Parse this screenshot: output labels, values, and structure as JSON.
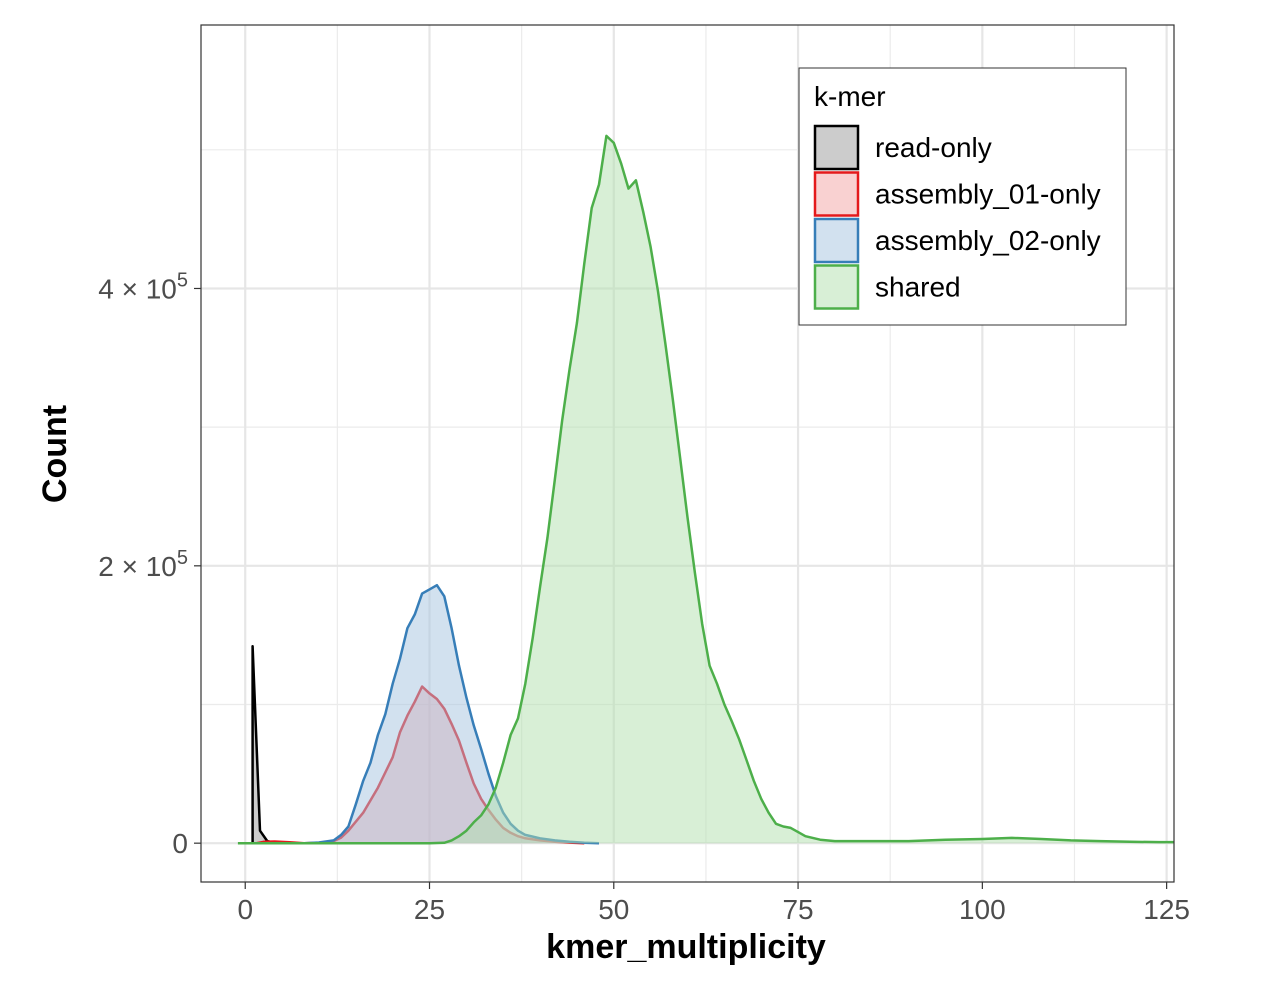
{
  "chart_data": {
    "type": "area",
    "title": "",
    "xlabel": "kmer_multiplicity",
    "ylabel": "Count",
    "xlim": [
      -6,
      126
    ],
    "ylim": [
      -28000,
      590000
    ],
    "x_ticks": [
      {
        "value": 0,
        "label": "0"
      },
      {
        "value": 25,
        "label": "25"
      },
      {
        "value": 50,
        "label": "50"
      },
      {
        "value": 75,
        "label": "75"
      },
      {
        "value": 100,
        "label": "100"
      },
      {
        "value": 125,
        "label": "125"
      }
    ],
    "y_ticks": [
      {
        "value": 0,
        "label": "0",
        "mantissa": "",
        "exponent": ""
      },
      {
        "value": 200000,
        "label": "2 × 10^5",
        "mantissa": "2",
        "exponent": "5"
      },
      {
        "value": 400000,
        "label": "4 × 10^5",
        "mantissa": "4",
        "exponent": "5"
      }
    ],
    "grid": true,
    "legend": {
      "title": "k-mer",
      "position": "top-right"
    },
    "series": [
      {
        "name": "read-only",
        "fill": "#999999",
        "stroke": "#000000",
        "points": [
          [
            1,
            0
          ],
          [
            1,
            142000
          ],
          [
            2,
            9000
          ],
          [
            3,
            1500
          ],
          [
            4,
            300
          ],
          [
            5,
            0
          ]
        ]
      },
      {
        "name": "assembly_01-only",
        "fill": "#F4A3A4",
        "stroke": "#E41A1C",
        "points": [
          [
            1.5,
            0
          ],
          [
            2.5,
            1000
          ],
          [
            4,
            1200
          ],
          [
            6,
            600
          ],
          [
            8,
            0
          ],
          [
            10,
            300
          ],
          [
            12,
            1500
          ],
          [
            13,
            4000
          ],
          [
            14,
            9000
          ],
          [
            16,
            22000
          ],
          [
            18,
            40000
          ],
          [
            20,
            62000
          ],
          [
            21,
            80000
          ],
          [
            22,
            92000
          ],
          [
            23,
            102000
          ],
          [
            24,
            113000
          ],
          [
            25,
            108000
          ],
          [
            26,
            104000
          ],
          [
            27,
            97000
          ],
          [
            28,
            86000
          ],
          [
            29,
            74000
          ],
          [
            30,
            58000
          ],
          [
            31,
            43000
          ],
          [
            32,
            32000
          ],
          [
            33,
            24000
          ],
          [
            34,
            17000
          ],
          [
            35,
            11000
          ],
          [
            36,
            7500
          ],
          [
            37,
            5000
          ],
          [
            38,
            3500
          ],
          [
            40,
            2000
          ],
          [
            42,
            1000
          ],
          [
            44,
            400
          ],
          [
            46,
            0
          ]
        ]
      },
      {
        "name": "assembly_02-only",
        "fill": "#A6C4E0",
        "stroke": "#377EB8",
        "points": [
          [
            8,
            0
          ],
          [
            10,
            500
          ],
          [
            12,
            2000
          ],
          [
            13,
            6000
          ],
          [
            14,
            12000
          ],
          [
            15,
            28000
          ],
          [
            16,
            45000
          ],
          [
            17,
            58000
          ],
          [
            18,
            78000
          ],
          [
            19,
            93000
          ],
          [
            20,
            115000
          ],
          [
            21,
            133000
          ],
          [
            22,
            155000
          ],
          [
            23,
            165000
          ],
          [
            24,
            180000
          ],
          [
            25,
            183000
          ],
          [
            26,
            186000
          ],
          [
            27,
            178000
          ],
          [
            28,
            155000
          ],
          [
            29,
            128000
          ],
          [
            30,
            105000
          ],
          [
            31,
            85000
          ],
          [
            32,
            68000
          ],
          [
            33,
            50000
          ],
          [
            34,
            34000
          ],
          [
            35,
            22000
          ],
          [
            36,
            14000
          ],
          [
            37,
            9000
          ],
          [
            38,
            6000
          ],
          [
            40,
            3500
          ],
          [
            42,
            2000
          ],
          [
            44,
            1000
          ],
          [
            46,
            300
          ],
          [
            48,
            0
          ]
        ]
      },
      {
        "name": "shared",
        "fill": "#B2DFAD",
        "stroke": "#4DAF4A",
        "points": [
          [
            -1,
            0
          ],
          [
            5,
            0
          ],
          [
            10,
            0
          ],
          [
            15,
            0
          ],
          [
            20,
            0
          ],
          [
            25,
            0
          ],
          [
            27,
            300
          ],
          [
            28,
            2000
          ],
          [
            29,
            5000
          ],
          [
            30,
            9000
          ],
          [
            31,
            15000
          ],
          [
            32,
            20000
          ],
          [
            33,
            28000
          ],
          [
            34,
            40000
          ],
          [
            35,
            58000
          ],
          [
            36,
            78000
          ],
          [
            37,
            90000
          ],
          [
            38,
            115000
          ],
          [
            39,
            148000
          ],
          [
            40,
            185000
          ],
          [
            41,
            220000
          ],
          [
            42,
            262000
          ],
          [
            43,
            305000
          ],
          [
            44,
            342000
          ],
          [
            45,
            375000
          ],
          [
            46,
            418000
          ],
          [
            47,
            458000
          ],
          [
            48,
            475000
          ],
          [
            49,
            510000
          ],
          [
            50,
            505000
          ],
          [
            51,
            490000
          ],
          [
            52,
            472000
          ],
          [
            53,
            478000
          ],
          [
            54,
            455000
          ],
          [
            55,
            430000
          ],
          [
            56,
            398000
          ],
          [
            57,
            360000
          ],
          [
            58,
            320000
          ],
          [
            59,
            278000
          ],
          [
            60,
            235000
          ],
          [
            61,
            195000
          ],
          [
            62,
            158000
          ],
          [
            63,
            128000
          ],
          [
            64,
            115000
          ],
          [
            65,
            100000
          ],
          [
            66,
            88000
          ],
          [
            67,
            75000
          ],
          [
            68,
            60000
          ],
          [
            69,
            45000
          ],
          [
            70,
            32000
          ],
          [
            71,
            22000
          ],
          [
            72,
            14000
          ],
          [
            73,
            12000
          ],
          [
            74,
            11000
          ],
          [
            75,
            8000
          ],
          [
            76,
            5000
          ],
          [
            78,
            2500
          ],
          [
            80,
            1500
          ],
          [
            85,
            1500
          ],
          [
            90,
            1500
          ],
          [
            95,
            2500
          ],
          [
            100,
            3000
          ],
          [
            104,
            3800
          ],
          [
            108,
            3000
          ],
          [
            112,
            2000
          ],
          [
            116,
            1500
          ],
          [
            120,
            1000
          ],
          [
            124,
            800
          ],
          [
            126,
            800
          ]
        ]
      }
    ]
  }
}
